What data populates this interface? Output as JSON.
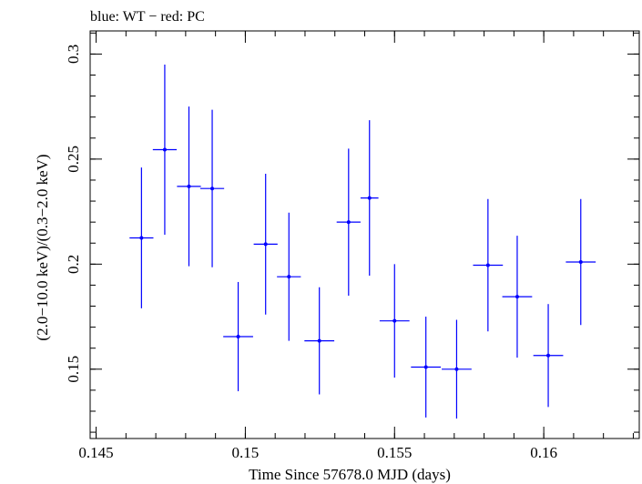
{
  "chart_data": {
    "type": "scatter",
    "title": "blue: WT − red: PC",
    "xlabel": "Time Since 57678.0 MJD (days)",
    "ylabel": "(2.0−10.0 keV)/(0.3−2.0 keV)",
    "xlim": [
      0.1448,
      0.1632
    ],
    "ylim": [
      0.117,
      0.311
    ],
    "x_ticks": [
      0.145,
      0.15,
      0.155,
      0.16
    ],
    "x_tick_labels": [
      "0.145",
      "0.15",
      "0.155",
      "0.16"
    ],
    "y_ticks": [
      0.15,
      0.2,
      0.25,
      0.3
    ],
    "y_tick_labels": [
      "0.15",
      "0.2",
      "0.25",
      "0.3"
    ],
    "x_minor_step": 0.001,
    "y_minor_step": 0.01,
    "grid": false,
    "series": [
      {
        "color": "#0000ff",
        "points": [
          {
            "x": 0.14652,
            "y": 0.2125,
            "xerr": 0.0004,
            "yerr": 0.0335
          },
          {
            "x": 0.1473,
            "y": 0.2545,
            "xerr": 0.0004,
            "yerr": 0.0405
          },
          {
            "x": 0.14811,
            "y": 0.237,
            "xerr": 0.0004,
            "yerr": 0.038
          },
          {
            "x": 0.14889,
            "y": 0.236,
            "xerr": 0.0004,
            "yerr": 0.0375
          },
          {
            "x": 0.14976,
            "y": 0.1655,
            "xerr": 0.0005,
            "yerr": 0.026
          },
          {
            "x": 0.15068,
            "y": 0.2095,
            "xerr": 0.0004,
            "yerr": 0.0335
          },
          {
            "x": 0.15146,
            "y": 0.194,
            "xerr": 0.0004,
            "yerr": 0.0305
          },
          {
            "x": 0.15248,
            "y": 0.1635,
            "xerr": 0.0005,
            "yerr": 0.0255
          },
          {
            "x": 0.15346,
            "y": 0.22,
            "xerr": 0.0004,
            "yerr": 0.035
          },
          {
            "x": 0.15416,
            "y": 0.2315,
            "xerr": 0.0003,
            "yerr": 0.037
          },
          {
            "x": 0.155,
            "y": 0.173,
            "xerr": 0.0005,
            "yerr": 0.027
          },
          {
            "x": 0.15605,
            "y": 0.151,
            "xerr": 0.0005,
            "yerr": 0.024
          },
          {
            "x": 0.15708,
            "y": 0.15,
            "xerr": 0.0005,
            "yerr": 0.0235
          },
          {
            "x": 0.15813,
            "y": 0.1995,
            "xerr": 0.0005,
            "yerr": 0.0315
          },
          {
            "x": 0.15911,
            "y": 0.1845,
            "xerr": 0.0005,
            "yerr": 0.029
          },
          {
            "x": 0.16015,
            "y": 0.1565,
            "xerr": 0.0005,
            "yerr": 0.0245
          },
          {
            "x": 0.16124,
            "y": 0.201,
            "xerr": 0.0005,
            "yerr": 0.03
          }
        ]
      }
    ]
  }
}
